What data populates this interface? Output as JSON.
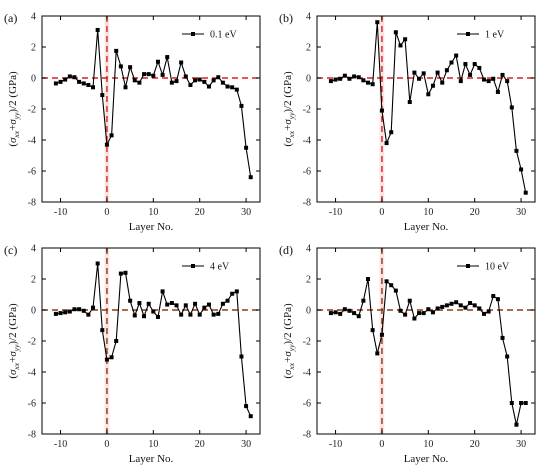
{
  "chart_data": [
    {
      "type": "line",
      "panel_label": "(a)",
      "legend": "0.1 eV",
      "legend_position": "top-right",
      "xlabel": "Layer No.",
      "ylabel": "(σxx+σyy)/2 (GPa)",
      "xlim": [
        -14,
        33
      ],
      "ylim": [
        -8,
        4
      ],
      "xticks": [
        -10,
        0,
        10,
        20,
        30
      ],
      "yticks": [
        -8,
        -6,
        -4,
        -2,
        0,
        2,
        4
      ],
      "reference_lines": {
        "x": 0,
        "y": 0,
        "color": "#d62020",
        "style": "dashed"
      },
      "shading": {
        "x_from": -0.5,
        "x_to": 0.5,
        "y_from": -8,
        "y_to": 4,
        "color": "#fbe3e3"
      },
      "series": [
        {
          "x": [
            -11,
            -10,
            -9,
            -8,
            -7,
            -6,
            -5,
            -4,
            -3,
            -2,
            -1,
            0,
            1,
            2,
            3,
            4,
            5,
            6,
            7,
            8,
            9,
            10,
            11,
            12,
            13,
            14,
            15,
            16,
            17,
            18,
            19,
            20,
            21,
            22,
            23,
            24,
            25,
            26,
            27,
            28,
            29,
            30,
            31
          ],
          "y": [
            -0.35,
            -0.25,
            -0.1,
            0.1,
            0.05,
            -0.25,
            -0.35,
            -0.45,
            -0.6,
            3.1,
            -1.1,
            -4.3,
            -3.7,
            1.75,
            0.75,
            -0.6,
            0.7,
            -0.15,
            -0.3,
            0.25,
            0.25,
            0.15,
            1.05,
            0.2,
            1.35,
            -0.3,
            -0.2,
            1.0,
            0.1,
            -0.45,
            -0.15,
            -0.1,
            -0.25,
            -0.55,
            -0.15,
            0.05,
            -0.3,
            -0.55,
            -0.6,
            -0.75,
            -1.8,
            -4.5,
            -6.4
          ]
        }
      ]
    },
    {
      "type": "line",
      "panel_label": "(b)",
      "legend": "1 eV",
      "legend_position": "top-right",
      "xlabel": "Layer No.",
      "ylabel": "(σxx+σyy)/2 (GPa)",
      "xlim": [
        -14,
        33
      ],
      "ylim": [
        -8,
        4
      ],
      "xticks": [
        -10,
        0,
        10,
        20,
        30
      ],
      "yticks": [
        -8,
        -6,
        -4,
        -2,
        0,
        2,
        4
      ],
      "reference_lines": {
        "x": 0,
        "y": 0,
        "color": "#d62020",
        "style": "dashed"
      },
      "shading": {
        "x_from": -0.5,
        "x_to": 0.5,
        "y_from": -8,
        "y_to": 4,
        "color": "#fbe3e3"
      },
      "series": [
        {
          "x": [
            -11,
            -10,
            -9,
            -8,
            -7,
            -6,
            -5,
            -4,
            -3,
            -2,
            -1,
            0,
            1,
            2,
            3,
            4,
            5,
            6,
            7,
            8,
            9,
            10,
            11,
            12,
            13,
            14,
            15,
            16,
            17,
            18,
            19,
            20,
            21,
            22,
            23,
            24,
            25,
            26,
            27,
            28,
            29,
            30,
            31
          ],
          "y": [
            -0.2,
            -0.1,
            -0.05,
            0.15,
            -0.05,
            0.1,
            0.05,
            -0.15,
            -0.3,
            -0.4,
            3.6,
            -2.1,
            -4.2,
            -3.5,
            2.95,
            2.1,
            2.5,
            -1.55,
            0.35,
            -0.05,
            0.3,
            -1.05,
            -0.5,
            0.35,
            -0.3,
            0.5,
            1.0,
            1.45,
            -0.2,
            0.9,
            0.2,
            0.9,
            0.65,
            -0.1,
            -0.2,
            -0.05,
            -0.9,
            0.2,
            -0.2,
            -1.9,
            -4.7,
            -5.9,
            -7.4
          ]
        }
      ]
    },
    {
      "type": "line",
      "panel_label": "(c)",
      "legend": "4 eV",
      "legend_position": "top-right",
      "xlabel": "Layer No.",
      "ylabel": "(σxx+σyy)/2 (GPa)",
      "xlim": [
        -14,
        33
      ],
      "ylim": [
        -8,
        4
      ],
      "xticks": [
        -10,
        0,
        10,
        20,
        30
      ],
      "yticks": [
        -8,
        -6,
        -4,
        -2,
        0,
        2,
        4
      ],
      "reference_lines": {
        "x": 0,
        "y": 0,
        "color": "#8b3a10",
        "style": "dashed"
      },
      "shading": {
        "x_from": -0.5,
        "x_to": 0.5,
        "y_from": -8,
        "y_to": 4,
        "color": "#fbe3e3"
      },
      "series": [
        {
          "x": [
            -11,
            -10,
            -9,
            -8,
            -7,
            -6,
            -5,
            -4,
            -3,
            -2,
            -1,
            0,
            1,
            2,
            3,
            4,
            5,
            6,
            7,
            8,
            9,
            10,
            11,
            12,
            13,
            14,
            15,
            16,
            17,
            18,
            19,
            20,
            21,
            22,
            23,
            24,
            25,
            26,
            27,
            28,
            29,
            30,
            31
          ],
          "y": [
            -0.25,
            -0.2,
            -0.15,
            -0.1,
            0.05,
            0.05,
            -0.05,
            -0.3,
            0.15,
            3.0,
            -1.3,
            -3.2,
            -3.05,
            -2.0,
            2.35,
            2.4,
            0.6,
            -0.35,
            0.45,
            -0.4,
            0.4,
            -0.1,
            -0.45,
            1.2,
            0.35,
            0.45,
            0.3,
            -0.3,
            0.3,
            -0.3,
            0.4,
            -0.3,
            0.15,
            0.35,
            -0.3,
            -0.25,
            0.4,
            0.6,
            1.05,
            1.2,
            -3.0,
            -6.2,
            -6.85
          ]
        }
      ]
    },
    {
      "type": "line",
      "panel_label": "(d)",
      "legend": "10 eV",
      "legend_position": "top-right",
      "xlabel": "Layer No.",
      "ylabel": "(σxx+σyy)/2 (GPa)",
      "xlim": [
        -14,
        33
      ],
      "ylim": [
        -8,
        4
      ],
      "xticks": [
        -10,
        0,
        10,
        20,
        30
      ],
      "yticks": [
        -8,
        -6,
        -4,
        -2,
        0,
        2,
        4
      ],
      "reference_lines": {
        "x": 0,
        "y": 0,
        "color": "#8b3a10",
        "style": "dashed"
      },
      "shading": {
        "x_from": -0.5,
        "x_to": 0.5,
        "y_from": -8,
        "y_to": 4,
        "color": "#fbe3e3"
      },
      "series": [
        {
          "x": [
            -11,
            -10,
            -9,
            -8,
            -7,
            -6,
            -5,
            -4,
            -3,
            -2,
            -1,
            0,
            1,
            2,
            3,
            4,
            5,
            6,
            7,
            8,
            9,
            10,
            11,
            12,
            13,
            14,
            15,
            16,
            17,
            18,
            19,
            20,
            21,
            22,
            23,
            24,
            25,
            26,
            27,
            28,
            29,
            30,
            31
          ],
          "y": [
            -0.2,
            -0.15,
            -0.25,
            0.05,
            -0.05,
            -0.2,
            -0.4,
            0.6,
            2.0,
            -1.3,
            -2.8,
            -1.6,
            1.85,
            1.6,
            1.25,
            -0.05,
            -0.3,
            0.6,
            -0.55,
            -0.2,
            -0.2,
            0.05,
            -0.15,
            0.1,
            0.2,
            0.3,
            0.4,
            0.5,
            0.3,
            0.15,
            0.45,
            0.3,
            0.1,
            -0.25,
            -0.1,
            0.9,
            0.7,
            -1.8,
            -3.0,
            -6.0,
            -7.4,
            -6.0,
            -6.0
          ]
        }
      ]
    }
  ]
}
